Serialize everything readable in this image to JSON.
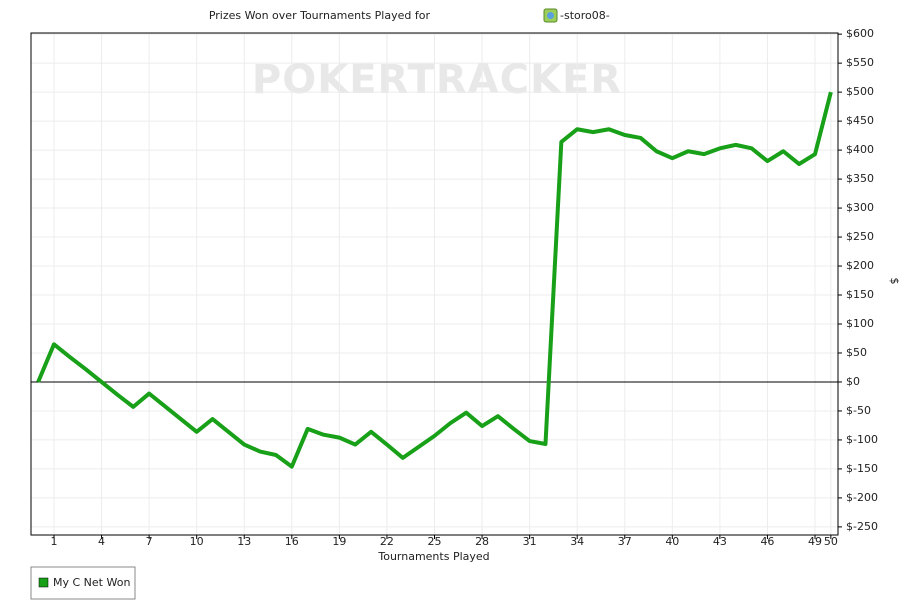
{
  "chart_data": {
    "type": "line",
    "title": "Prizes Won over Tournaments Played for",
    "title_user": "-storo08-",
    "watermark": "POKERTRACKER",
    "xlabel": "Tournaments Played",
    "ylabel": "$",
    "x": [
      0,
      1,
      2,
      3,
      4,
      5,
      6,
      7,
      8,
      9,
      10,
      11,
      12,
      13,
      14,
      15,
      16,
      17,
      18,
      19,
      20,
      21,
      22,
      23,
      24,
      25,
      26,
      27,
      28,
      29,
      30,
      31,
      32,
      33,
      34,
      35,
      36,
      37,
      38,
      39,
      40,
      41,
      42,
      43,
      44,
      45,
      46,
      47,
      48,
      49,
      50
    ],
    "series": [
      {
        "name": "My C Net Won",
        "color": "#18a018",
        "values": [
          0,
          65,
          43,
          22,
          0,
          -22,
          -43,
          -20,
          -42,
          -64,
          -86,
          -64,
          -86,
          -108,
          -120,
          -126,
          -146,
          -81,
          -91,
          -96,
          -108,
          -86,
          -108,
          -131,
          -112,
          -93,
          -71,
          -53,
          -76,
          -59,
          -81,
          -102,
          -107,
          414,
          436,
          431,
          436,
          426,
          421,
          398,
          386,
          398,
          393,
          403,
          409,
          403,
          381,
          398,
          376,
          393,
          500
        ]
      }
    ],
    "xlim": [
      -0.45,
      50.45
    ],
    "xticks": [
      1,
      4,
      7,
      10,
      13,
      16,
      19,
      22,
      25,
      28,
      31,
      34,
      37,
      40,
      43,
      46,
      49,
      50
    ],
    "ylim": [
      -264,
      602
    ],
    "yticks": [
      {
        "value": 600,
        "label": "$600"
      },
      {
        "value": 550,
        "label": "$550"
      },
      {
        "value": 500,
        "label": "$500"
      },
      {
        "value": 450,
        "label": "$450"
      },
      {
        "value": 400,
        "label": "$400"
      },
      {
        "value": 350,
        "label": "$350"
      },
      {
        "value": 300,
        "label": "$300"
      },
      {
        "value": 250,
        "label": "$250"
      },
      {
        "value": 200,
        "label": "$200"
      },
      {
        "value": 150,
        "label": "$150"
      },
      {
        "value": 100,
        "label": "$100"
      },
      {
        "value": 50,
        "label": "$50"
      },
      {
        "value": 0,
        "label": "$0"
      },
      {
        "value": -50,
        "label": "$-50"
      },
      {
        "value": -100,
        "label": "$-100"
      },
      {
        "value": -150,
        "label": "$-150"
      },
      {
        "value": -200,
        "label": "$-200"
      },
      {
        "value": -250,
        "label": "$-250"
      }
    ],
    "grid": true,
    "legend": "bottom-left"
  }
}
